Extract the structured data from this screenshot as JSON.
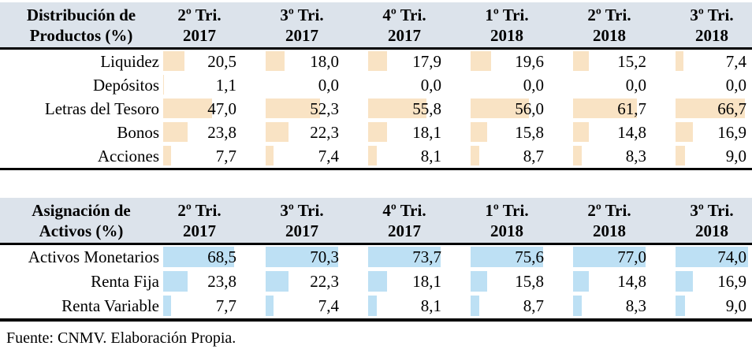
{
  "page": {
    "source_note": "Fuente: CNMV. Elaboración Propia."
  },
  "colors": {
    "header_bg": "#dce3eb",
    "products_bar": "#f9e3c4",
    "assets_bar": "#bde0f4",
    "border": "#000000",
    "text": "#000000"
  },
  "columns": [
    {
      "period": "2º Tri.",
      "year": "2017"
    },
    {
      "period": "3º Tri.",
      "year": "2017"
    },
    {
      "period": "4º Tri.",
      "year": "2017"
    },
    {
      "period": "1º Tri.",
      "year": "2018"
    },
    {
      "period": "2º Tri.",
      "year": "2018"
    },
    {
      "period": "3º Tri.",
      "year": "2018"
    }
  ],
  "number_format": {
    "decimals": 1,
    "decimal_separator": ","
  },
  "tables": [
    {
      "name": "productos",
      "title_line1": "Distribución de",
      "title_line2": "Productos (%)",
      "bar_color_key": "products_bar",
      "rows": [
        {
          "label": "Liquidez",
          "values": [
            20.5,
            18.0,
            17.9,
            19.6,
            15.2,
            7.4
          ]
        },
        {
          "label": "Depósitos",
          "values": [
            1.1,
            0.0,
            0.0,
            0.0,
            0.0,
            0.0
          ]
        },
        {
          "label": "Letras del Tesoro",
          "values": [
            47.0,
            52.3,
            55.8,
            56.0,
            61.7,
            66.7
          ]
        },
        {
          "label": "Bonos",
          "values": [
            23.8,
            22.3,
            18.1,
            15.8,
            14.8,
            16.9
          ]
        },
        {
          "label": "Acciones",
          "values": [
            7.7,
            7.4,
            8.1,
            8.7,
            8.3,
            9.0
          ]
        }
      ]
    },
    {
      "name": "activos",
      "title_line1": "Asignación de",
      "title_line2": "Activos (%)",
      "bar_color_key": "assets_bar",
      "rows": [
        {
          "label": "Activos Monetarios",
          "values": [
            68.5,
            70.3,
            73.7,
            75.6,
            77.0,
            74.0
          ]
        },
        {
          "label": "Renta Fija",
          "values": [
            23.8,
            22.3,
            18.1,
            15.8,
            14.8,
            16.9
          ]
        },
        {
          "label": "Renta Variable",
          "values": [
            7.7,
            7.4,
            8.1,
            8.7,
            8.3,
            9.0
          ]
        }
      ]
    }
  ]
}
